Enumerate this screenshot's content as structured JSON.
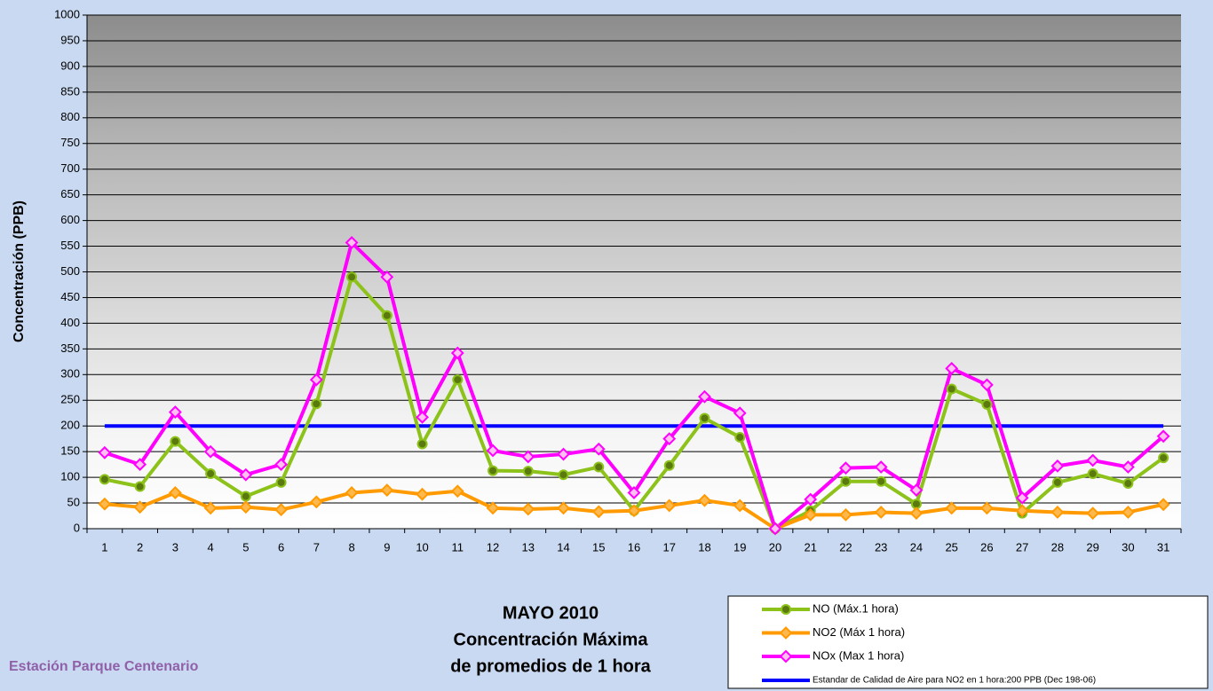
{
  "chart_data": {
    "type": "line",
    "y_label": "Concentración  (PPB)",
    "title_lines": [
      "MAYO 2010",
      "Concentración Máxima",
      "de promedios de 1 hora"
    ],
    "station": "Estación Parque Centenario",
    "categories": [
      "1",
      "2",
      "3",
      "4",
      "5",
      "6",
      "7",
      "8",
      "9",
      "10",
      "11",
      "12",
      "13",
      "14",
      "15",
      "16",
      "17",
      "18",
      "19",
      "20",
      "21",
      "22",
      "23",
      "24",
      "25",
      "26",
      "27",
      "28",
      "29",
      "30",
      "31"
    ],
    "series": [
      {
        "name": "NO (Máx.1 hora)",
        "color": "#8cc21a",
        "marker": "circle",
        "marker_fill": "#5a7a10",
        "values": [
          96,
          82,
          170,
          107,
          63,
          90,
          243,
          490,
          415,
          165,
          290,
          113,
          112,
          105,
          120,
          35,
          123,
          215,
          178,
          0,
          35,
          92,
          92,
          48,
          272,
          242,
          30,
          90,
          107,
          88,
          138
        ]
      },
      {
        "name": "NO2 (Máx 1 hora)",
        "color": "#ff9a00",
        "marker": "diamond",
        "marker_fill": "#ffb84d",
        "values": [
          48,
          42,
          70,
          40,
          42,
          37,
          52,
          70,
          75,
          67,
          73,
          40,
          38,
          40,
          33,
          35,
          45,
          55,
          45,
          0,
          27,
          27,
          32,
          30,
          40,
          40,
          35,
          32,
          30,
          32,
          47
        ]
      },
      {
        "name": "NOx (Max 1 hora)",
        "color": "#ff00ff",
        "marker": "diamond",
        "marker_fill": "#ffc0f0",
        "values": [
          148,
          125,
          227,
          150,
          105,
          125,
          290,
          557,
          490,
          217,
          342,
          152,
          140,
          145,
          155,
          70,
          175,
          257,
          225,
          0,
          57,
          118,
          120,
          75,
          312,
          280,
          60,
          122,
          133,
          120,
          180
        ]
      }
    ],
    "reference_line": {
      "name": "Estandar de Calidad de Aire para NO2 en 1 hora:200 PPB (Dec 198-06)",
      "value": 200,
      "color": "#0000ff"
    },
    "ylim": [
      0,
      1000
    ],
    "yticks": [
      0,
      50,
      100,
      150,
      200,
      250,
      300,
      350,
      400,
      450,
      500,
      550,
      600,
      650,
      700,
      750,
      800,
      850,
      900,
      950,
      1000
    ],
    "grid": true
  }
}
